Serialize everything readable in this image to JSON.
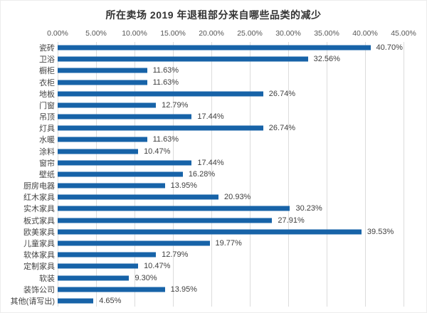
{
  "chart_data": {
    "type": "bar",
    "orientation": "horizontal",
    "title": "所在卖场 2019 年退租部分来自哪些品类的减少",
    "categories": [
      "瓷砖",
      "卫浴",
      "橱柜",
      "衣柜",
      "地板",
      "门窗",
      "吊顶",
      "灯具",
      "水暖",
      "涂料",
      "窗帘",
      "壁纸",
      "厨房电器",
      "红木家具",
      "实木家具",
      "板式家具",
      "欧美家具",
      "儿童家具",
      "软体家具",
      "定制家具",
      "软装",
      "装饰公司",
      "其他(请写出)"
    ],
    "values": [
      40.7,
      32.56,
      11.63,
      11.63,
      26.74,
      12.79,
      17.44,
      26.74,
      11.63,
      10.47,
      17.44,
      16.28,
      13.95,
      20.93,
      30.23,
      27.91,
      39.53,
      19.77,
      12.79,
      10.47,
      9.3,
      13.95,
      4.65
    ],
    "value_labels": [
      "40.70%",
      "32.56%",
      "11.63%",
      "11.63%",
      "26.74%",
      "12.79%",
      "17.44%",
      "26.74%",
      "11.63%",
      "10.47%",
      "17.44%",
      "16.28%",
      "13.95%",
      "20.93%",
      "30.23%",
      "27.91%",
      "39.53%",
      "19.77%",
      "12.79%",
      "10.47%",
      "9.30%",
      "13.95%",
      "4.65%"
    ],
    "x_ticks": [
      "0.00%",
      "5.00%",
      "10.00%",
      "15.00%",
      "20.00%",
      "25.00%",
      "30.00%",
      "35.00%",
      "40.00%",
      "45.00%"
    ],
    "xlim": [
      0,
      45
    ],
    "xlabel": "",
    "ylabel": "",
    "grid": "vertical",
    "legend": "none",
    "bar_color": "#1763a8",
    "gridline_color": "#dcdcdc",
    "text_color": "#444444"
  }
}
